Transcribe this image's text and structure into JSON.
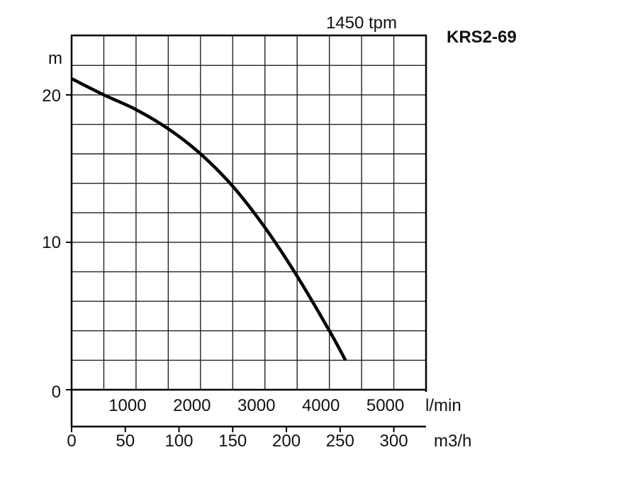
{
  "header": {
    "speed": "1450 tpm",
    "model": "KRS2-69"
  },
  "chart_data": {
    "type": "line",
    "y_unit": "m",
    "x_unit_primary": "l/min",
    "x_unit_secondary": "m3/h",
    "ylim": [
      0,
      22
    ],
    "xlim": [
      0,
      5500
    ],
    "y_ticks": [
      "0",
      "10",
      "20"
    ],
    "y_tick_values": [
      0,
      10,
      20
    ],
    "x_ticks_primary": [
      "1000",
      "2000",
      "3000",
      "4000",
      "5000"
    ],
    "x_tick_values_primary": [
      1000,
      2000,
      3000,
      4000,
      5000
    ],
    "x_ticks_secondary": [
      "0",
      "50",
      "100",
      "150",
      "200",
      "250",
      "300"
    ],
    "x_tick_values_secondary": [
      0,
      50,
      100,
      150,
      200,
      250,
      300
    ],
    "x_grid_step": 500,
    "y_grid_step": 2,
    "grid": true,
    "series": [
      {
        "color": "#000000",
        "x": [
          0,
          500,
          1000,
          1500,
          2000,
          2500,
          3000,
          3500,
          4000,
          4250
        ],
        "y": [
          21.1,
          20.0,
          19.0,
          17.7,
          16.0,
          13.8,
          11.0,
          7.7,
          4.0,
          2.0
        ]
      }
    ]
  }
}
